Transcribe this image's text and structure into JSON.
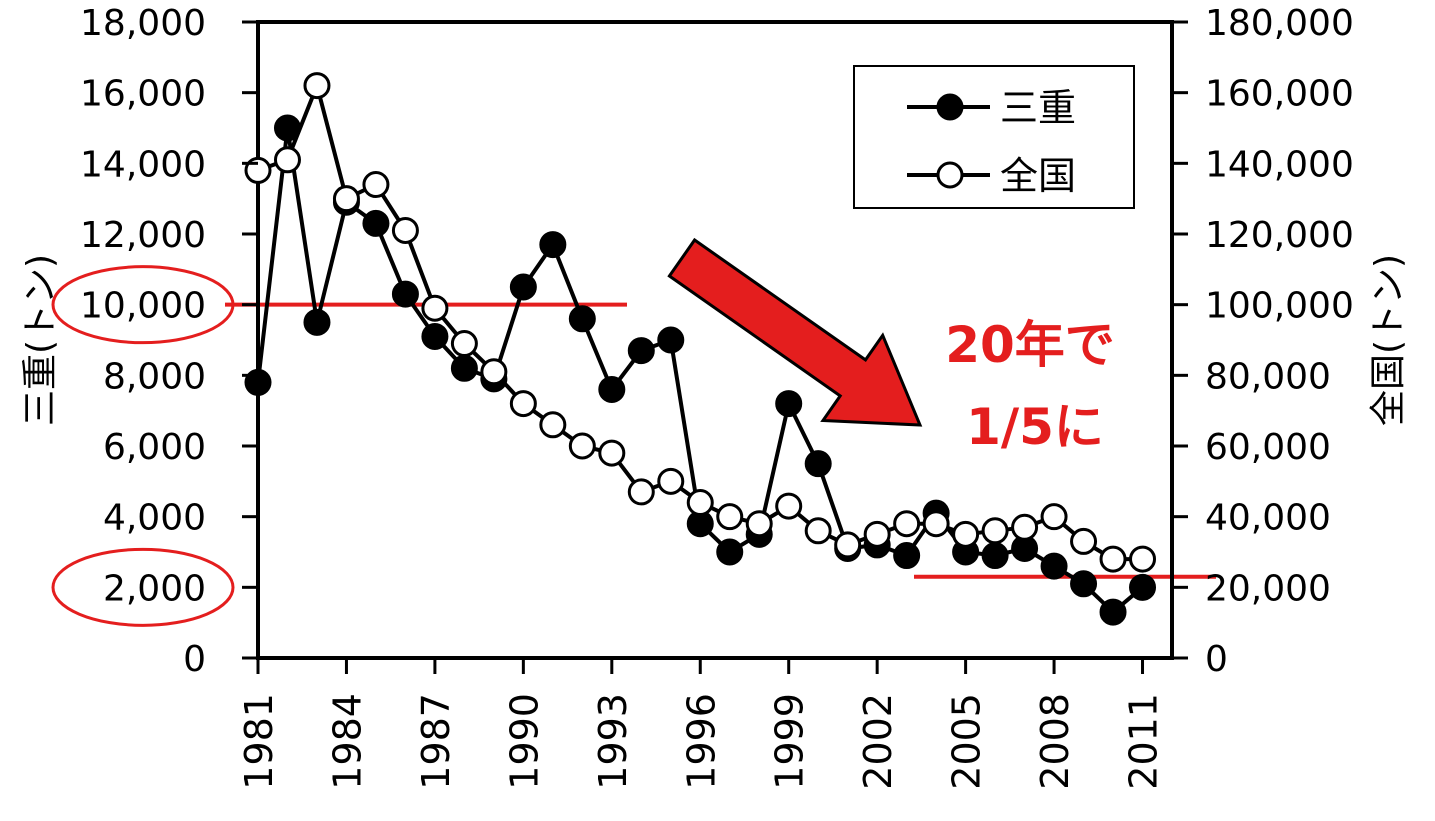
{
  "chart_data": {
    "type": "line",
    "x": [
      1981,
      1982,
      1983,
      1984,
      1985,
      1986,
      1987,
      1988,
      1989,
      1990,
      1991,
      1992,
      1993,
      1994,
      1995,
      1996,
      1997,
      1998,
      1999,
      2000,
      2001,
      2002,
      2003,
      2004,
      2005,
      2006,
      2007,
      2008,
      2009,
      2010,
      2011
    ],
    "x_tick_labels": [
      "1981",
      "1984",
      "1987",
      "1990",
      "1993",
      "1996",
      "1999",
      "2002",
      "2005",
      "2008",
      "2011"
    ],
    "y_left_label": "三重(トン)",
    "y_right_label": "全国(トン)",
    "y_left_ticks": [
      "0",
      "2,000",
      "4,000",
      "6,000",
      "8,000",
      "10,000",
      "12,000",
      "14,000",
      "16,000",
      "18,000"
    ],
    "y_right_ticks": [
      "0",
      "20,000",
      "40,000",
      "60,000",
      "80,000",
      "100,000",
      "120,000",
      "140,000",
      "160,000",
      "180,000"
    ],
    "ylim_left": [
      0,
      18000
    ],
    "ylim_right": [
      0,
      180000
    ],
    "grid": false,
    "legend_position": "top-right",
    "series": [
      {
        "name": "三重",
        "axis": "left",
        "marker": "filled-circle",
        "color": "#000000",
        "values": [
          7800,
          15000,
          9500,
          12900,
          12300,
          10300,
          9100,
          8200,
          7900,
          10500,
          11700,
          9600,
          7600,
          8700,
          9000,
          3800,
          3000,
          3500,
          7200,
          5500,
          3100,
          3200,
          2900,
          4100,
          3000,
          2900,
          3100,
          2600,
          2100,
          1300,
          2000
        ]
      },
      {
        "name": "全国",
        "axis": "right",
        "marker": "open-circle",
        "color": "#000000",
        "values": [
          138000,
          141000,
          162000,
          130000,
          134000,
          121000,
          99000,
          89000,
          81000,
          72000,
          66000,
          60000,
          58000,
          47000,
          50000,
          44000,
          40000,
          38000,
          43000,
          36000,
          32000,
          35000,
          38000,
          38000,
          35000,
          36000,
          37000,
          40000,
          33000,
          28000,
          28000
        ]
      }
    ],
    "annotations": {
      "text_line1": "20年で",
      "text_line2": "1/5に",
      "color": "#e41e1e",
      "reference_levels_left": [
        10000,
        2300
      ],
      "circled_tick_labels": [
        "10,000",
        "2,000"
      ]
    }
  }
}
